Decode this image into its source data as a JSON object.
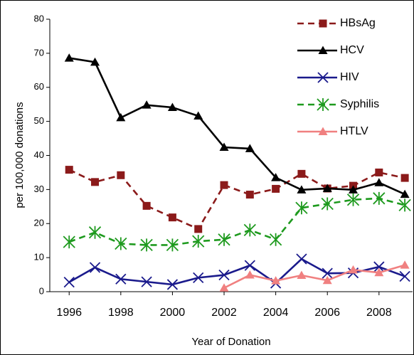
{
  "chart_data": {
    "type": "line",
    "xlabel": "Year of Donation",
    "ylabel": "per 100,000 donations",
    "x": [
      1996,
      1997,
      1998,
      1999,
      2000,
      2001,
      2002,
      2003,
      2004,
      2005,
      2006,
      2007,
      2008,
      2009
    ],
    "xlim": [
      1995.25,
      2009.3
    ],
    "xticks": [
      1996,
      1998,
      2000,
      2002,
      2004,
      2006,
      2008
    ],
    "ylim": [
      0,
      80
    ],
    "yticks": [
      0,
      10,
      20,
      30,
      40,
      50,
      60,
      70,
      80
    ],
    "legend": "top-right",
    "series": [
      {
        "name": "HBsAg",
        "color": "#8b1a1a",
        "dashed": true,
        "marker": "square",
        "values": [
          35.8,
          32.2,
          34.2,
          25.2,
          21.8,
          18.4,
          31.3,
          28.5,
          30.2,
          34.6,
          30.3,
          31.1,
          35,
          33.4
        ]
      },
      {
        "name": "HCV",
        "color": "#000000",
        "dashed": false,
        "marker": "triangle",
        "values": [
          68.6,
          67.4,
          51.1,
          54.8,
          54.1,
          51.6,
          42.4,
          42,
          33.5,
          29.9,
          30.3,
          29.9,
          32,
          28.6
        ]
      },
      {
        "name": "HIV",
        "color": "#1a1a8c",
        "dashed": false,
        "marker": "x",
        "values": [
          2.8,
          7.1,
          3.7,
          2.9,
          2.1,
          4.1,
          4.9,
          7.7,
          2.5,
          9.6,
          5.4,
          5.5,
          7.3,
          4.5
        ]
      },
      {
        "name": "Syphilis",
        "color": "#1e9a1e",
        "dashed": true,
        "marker": "asterisk",
        "values": [
          14.6,
          17.4,
          14.1,
          13.7,
          13.7,
          14.8,
          15.3,
          18.1,
          15.3,
          24.6,
          25.8,
          27,
          27.4,
          25.4
        ]
      },
      {
        "name": "HTLV",
        "color": "#f08080",
        "dashed": false,
        "marker": "triangle",
        "values": [
          null,
          null,
          null,
          null,
          null,
          null,
          1.1,
          4.9,
          3.2,
          4.8,
          3.3,
          6.4,
          5.6,
          7.8
        ]
      }
    ]
  }
}
